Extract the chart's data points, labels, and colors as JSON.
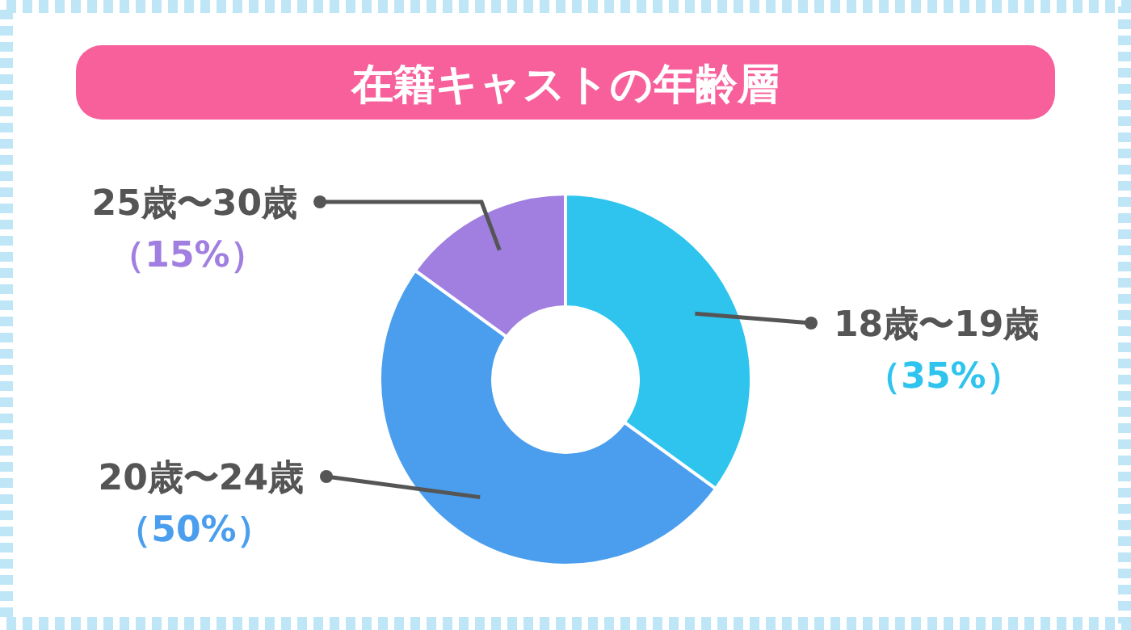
{
  "chart_data": {
    "type": "donut",
    "title": "在籍キャストの年齢層",
    "categories": [
      "18歳〜19歳",
      "20歳〜24歳",
      "25歳〜30歳"
    ],
    "values": [
      35,
      50,
      15
    ],
    "colors": [
      "#2ec4ee",
      "#4a9eed",
      "#a07fe0"
    ],
    "value_labels": [
      "（35%）",
      "（50%）",
      "（15%）"
    ]
  }
}
